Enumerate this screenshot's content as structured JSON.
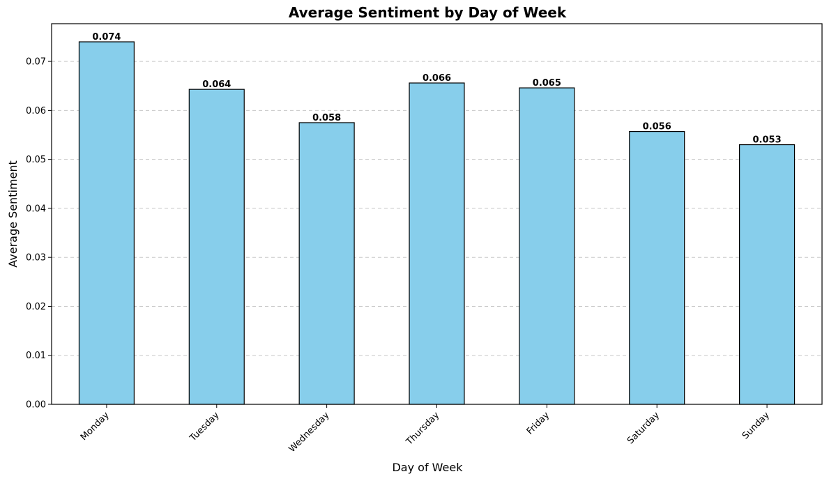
{
  "chart_data": {
    "type": "bar",
    "title": "Average Sentiment by Day of Week",
    "xlabel": "Day of Week",
    "ylabel": "Average Sentiment",
    "categories": [
      "Monday",
      "Tuesday",
      "Wednesday",
      "Thursday",
      "Friday",
      "Saturday",
      "Sunday"
    ],
    "values": [
      0.074,
      0.0643,
      0.0575,
      0.0656,
      0.0646,
      0.0557,
      0.053
    ],
    "value_labels": [
      "0.074",
      "0.064",
      "0.058",
      "0.066",
      "0.065",
      "0.056",
      "0.053"
    ],
    "ylim": [
      0,
      0.0777
    ],
    "yticks": [
      0.0,
      0.01,
      0.02,
      0.03,
      0.04,
      0.05,
      0.06,
      0.07
    ],
    "ytick_labels": [
      "0.00",
      "0.01",
      "0.02",
      "0.03",
      "0.04",
      "0.05",
      "0.06",
      "0.07"
    ],
    "grid": "y-dashed",
    "bar_color": "#87CEEB",
    "edge_color": "#000000",
    "grid_color": "#c8c8c8"
  }
}
